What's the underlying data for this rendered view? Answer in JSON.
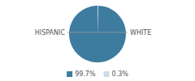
{
  "chart_data": {
    "type": "pie",
    "categories": [
      "HISPANIC",
      "WHITE"
    ],
    "values": [
      99.7,
      0.3
    ],
    "value_labels": [
      "99.7%",
      "0.3%"
    ],
    "colors": [
      "#3d7c9f",
      "#c9dde8"
    ],
    "legend": "bottom"
  }
}
